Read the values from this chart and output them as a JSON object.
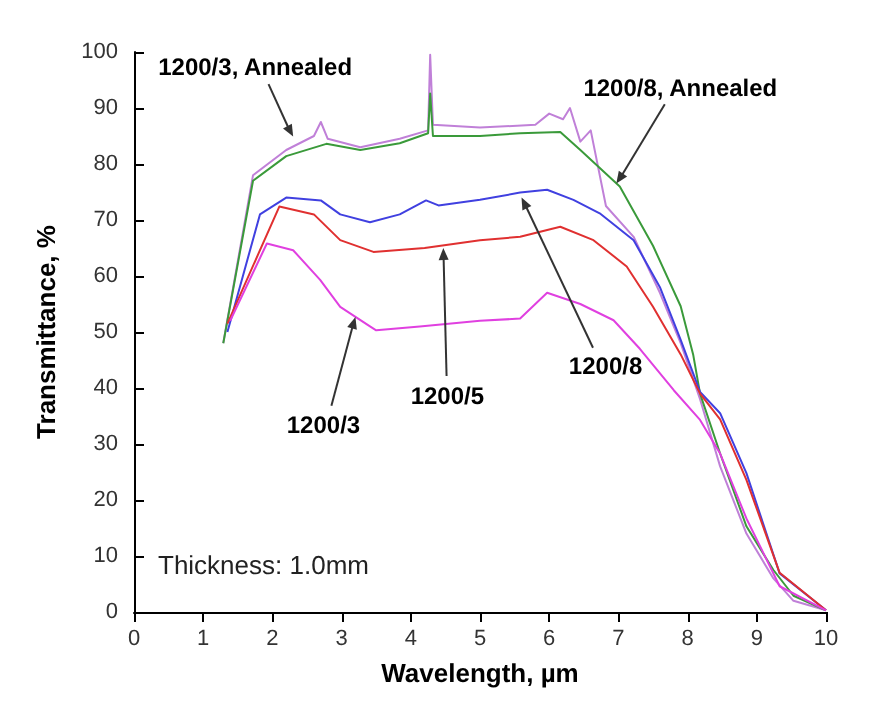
{
  "chart_data": {
    "type": "line",
    "xlabel": "Wavelength, µm",
    "ylabel": "Transmittance, %",
    "xlim": [
      0,
      10
    ],
    "xticks": [
      0,
      1,
      2,
      3,
      4,
      5,
      6,
      7,
      8,
      9,
      10
    ],
    "ylim": [
      0,
      100
    ],
    "yticks": [
      0,
      10,
      20,
      30,
      40,
      50,
      60,
      70,
      80,
      90,
      100
    ],
    "marker": "none",
    "line_style": "solid",
    "series": [
      {
        "color": "#c080d8",
        "x": [
          1.29,
          1.72,
          2.2,
          2.6,
          2.7,
          2.8,
          3.27,
          3.84,
          4.25,
          4.28,
          4.32,
          5.0,
          5.8,
          6.0,
          6.2,
          6.3,
          6.45,
          6.6,
          6.82,
          7.22,
          7.6,
          7.9,
          8.18,
          8.47,
          8.85,
          9.24,
          9.53,
          10
        ],
        "values": [
          48,
          78,
          82.5,
          85,
          87.5,
          84.5,
          83,
          84.5,
          86,
          99.5,
          87,
          86.5,
          87,
          89,
          88,
          90,
          84,
          86,
          72.5,
          67,
          57,
          48,
          38,
          26,
          14,
          6,
          2,
          0.3
        ]
      },
      {
        "color": "#3a9a3a",
        "x": [
          1.29,
          1.72,
          2.2,
          2.78,
          3.27,
          3.84,
          4.25,
          4.28,
          4.32,
          5.0,
          5.58,
          6.16,
          6.45,
          7.02,
          7.5,
          7.9,
          8.08,
          8.18,
          8.47,
          8.85,
          9.24,
          9.53,
          10
        ],
        "values": [
          48,
          77,
          81.4,
          83.6,
          82.5,
          83.7,
          85.5,
          92.6,
          85,
          85,
          85.5,
          85.7,
          82.5,
          76,
          65.4,
          54.6,
          46,
          39,
          28.3,
          15.3,
          7.5,
          2.9,
          0.3
        ]
      },
      {
        "color": "#4040e0",
        "x": [
          1.35,
          1.82,
          2.2,
          2.7,
          2.98,
          3.41,
          3.84,
          4.22,
          4.4,
          5.0,
          5.58,
          5.97,
          6.35,
          6.73,
          7.22,
          7.6,
          7.9,
          8.18,
          8.47,
          8.85,
          9.33,
          10
        ],
        "values": [
          50,
          71,
          74,
          73.5,
          71,
          69.6,
          71,
          73.5,
          72.6,
          73.6,
          74.9,
          75.4,
          73.6,
          71.2,
          66.4,
          58,
          48.6,
          39.3,
          35.5,
          24.8,
          6.9,
          0.3
        ]
      },
      {
        "color": "#e03030",
        "x": [
          1.35,
          2.1,
          2.6,
          2.98,
          3.46,
          4.2,
          5.0,
          5.58,
          6.16,
          6.64,
          7.12,
          7.5,
          7.9,
          8.18,
          8.47,
          8.85,
          9.33,
          10
        ],
        "values": [
          51.5,
          72.4,
          71,
          66.4,
          64.3,
          65,
          66.4,
          67,
          68.8,
          66.4,
          61.7,
          54.5,
          46,
          39,
          34.4,
          23.6,
          7,
          0.3
        ]
      },
      {
        "color": "#e040e0",
        "x": [
          1.39,
          1.92,
          2.3,
          2.69,
          2.98,
          3.41,
          3.5,
          4.13,
          5.0,
          5.58,
          5.97,
          6.45,
          6.93,
          7.31,
          7.8,
          8.18,
          8.47,
          8.85,
          9.33,
          10
        ],
        "values": [
          52,
          65.8,
          64.6,
          59.3,
          54.5,
          51,
          50.3,
          51,
          52,
          52.4,
          57,
          55,
          52.1,
          47,
          39.6,
          34.3,
          28.3,
          16.7,
          4.6,
          0.3
        ]
      }
    ],
    "annotations": [
      {
        "text": "1200/3, Annealed",
        "x": 2.3,
        "y": 84.9
      },
      {
        "text": "1200/8, Annealed",
        "x": 6.97,
        "y": 76.5
      },
      {
        "text": "1200/8",
        "x": 5.6,
        "y": 74
      },
      {
        "text": "1200/5",
        "x": 4.47,
        "y": 65
      },
      {
        "text": "1200/3",
        "x": 3.2,
        "y": 52.7
      },
      "Thickness: 1.0mm"
    ]
  }
}
